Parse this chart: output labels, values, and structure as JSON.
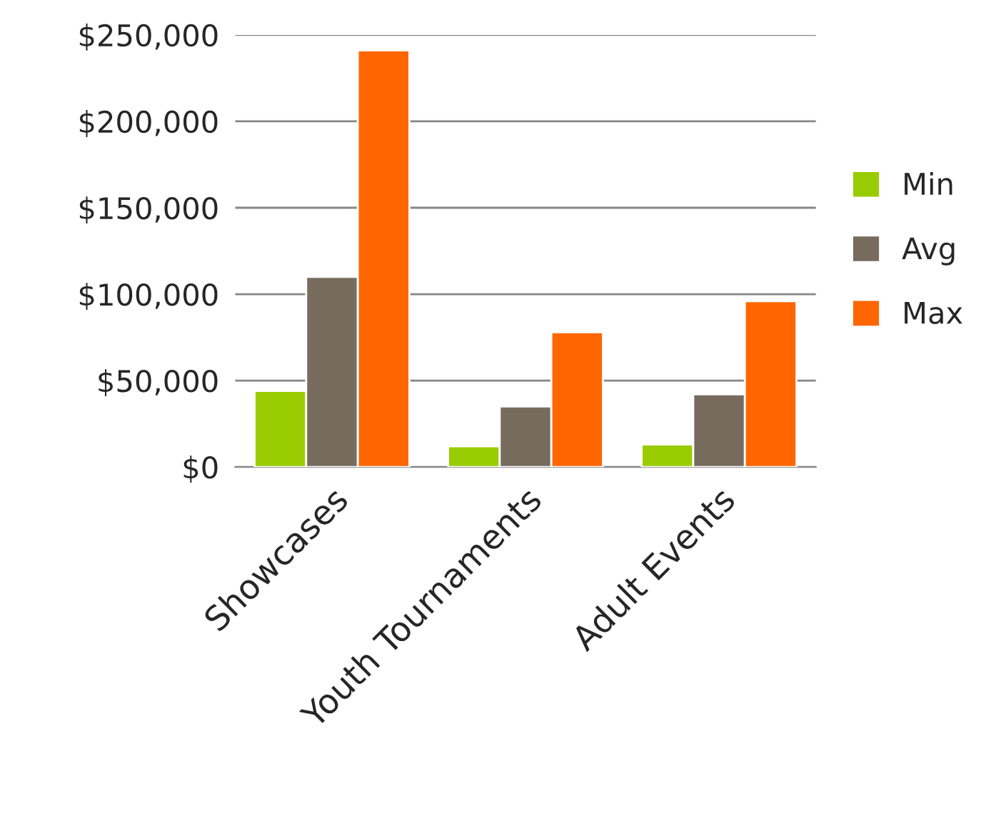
{
  "chart_data": {
    "type": "bar",
    "categories": [
      "Showcases",
      "Youth Tournaments",
      "Adult Events"
    ],
    "series": [
      {
        "name": "Min",
        "color": "#99cc00",
        "values": [
          44000,
          12000,
          13000
        ]
      },
      {
        "name": "Avg",
        "color": "#776b5d",
        "values": [
          110000,
          35000,
          42000
        ]
      },
      {
        "name": "Max",
        "color": "#ff6600",
        "values": [
          241000,
          78000,
          96000
        ]
      }
    ],
    "ylim": [
      0,
      250000
    ],
    "yticks": [
      {
        "value": 0,
        "label": "$0"
      },
      {
        "value": 50000,
        "label": "$50,000"
      },
      {
        "value": 100000,
        "label": "$100,000"
      },
      {
        "value": 150000,
        "label": "$150,000"
      },
      {
        "value": 200000,
        "label": "$200,000"
      },
      {
        "value": 250000,
        "label": "$250,000"
      }
    ],
    "grid": "y",
    "legend": "right"
  }
}
